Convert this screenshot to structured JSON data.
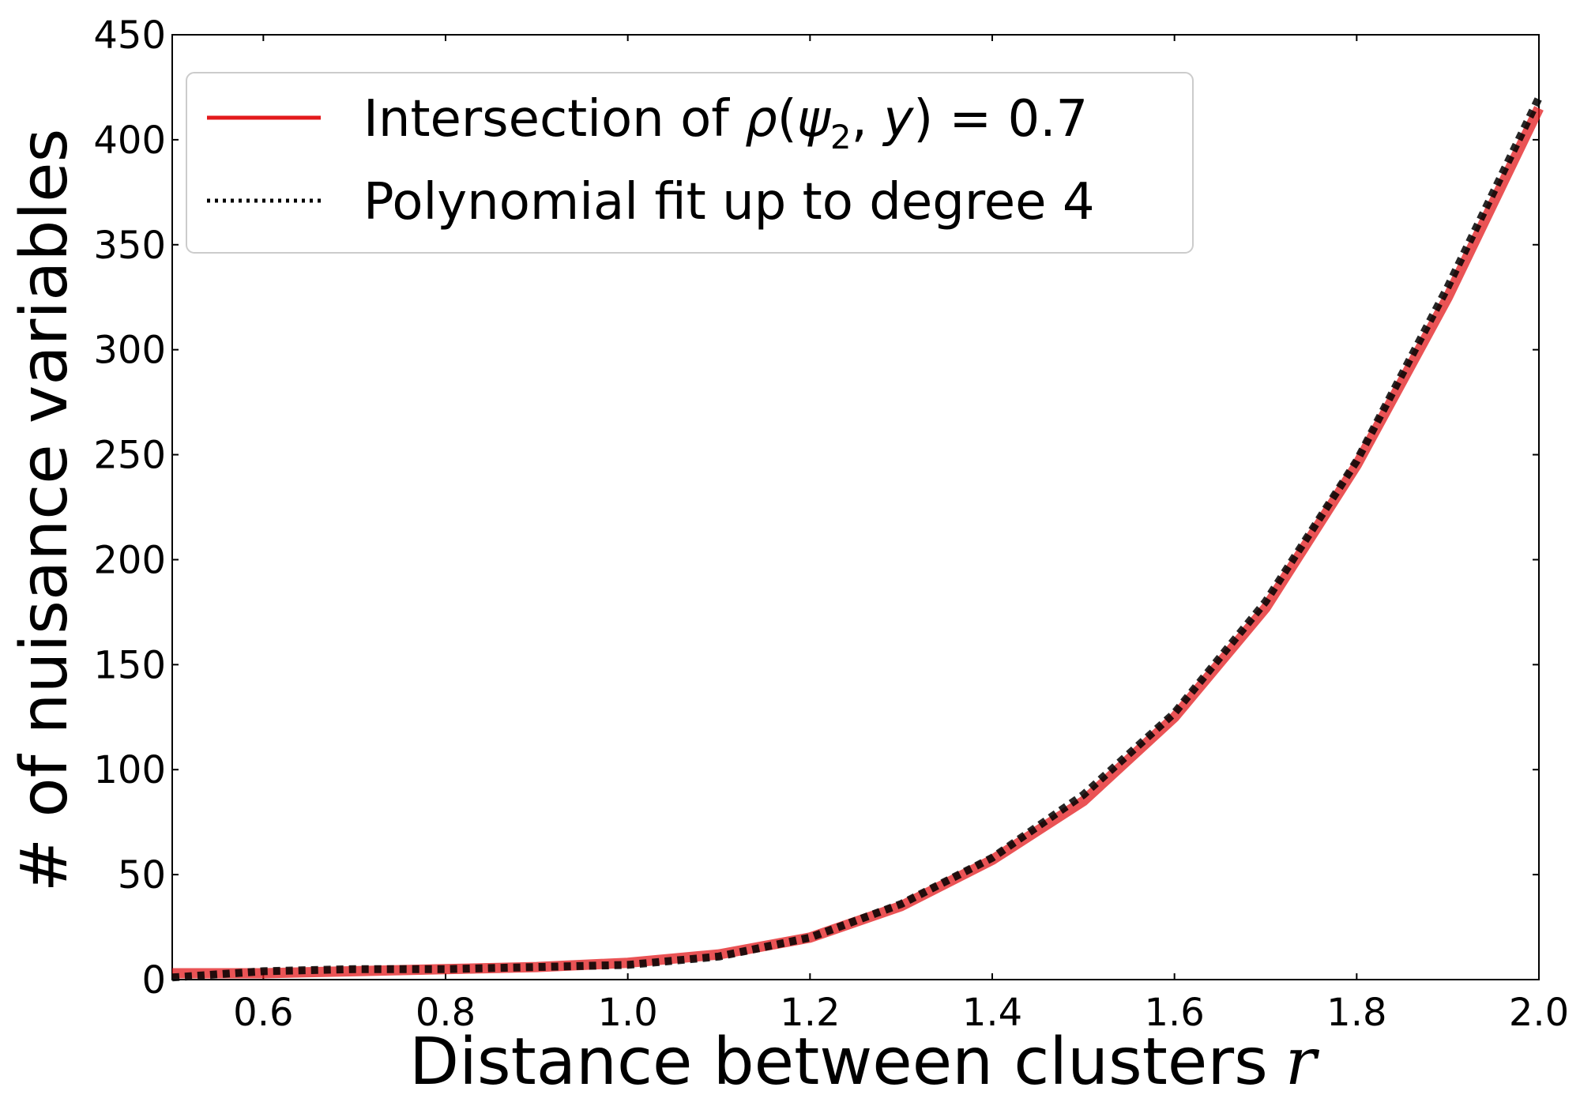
{
  "chart_data": {
    "type": "line",
    "xlabel": "Distance between clusters",
    "xlabel_symbol": "r",
    "ylabel": "# of nuisance variables",
    "xlim": [
      0.5,
      2.0
    ],
    "ylim": [
      0,
      450
    ],
    "x_ticks": [
      "0.6",
      "0.8",
      "1.0",
      "1.2",
      "1.4",
      "1.6",
      "1.8",
      "2.0"
    ],
    "y_ticks": [
      "0",
      "50",
      "100",
      "150",
      "200",
      "250",
      "300",
      "350",
      "400",
      "450"
    ],
    "x_tick_values": [
      0.6,
      0.8,
      1.0,
      1.2,
      1.4,
      1.6,
      1.8,
      2.0
    ],
    "y_tick_values": [
      0,
      50,
      100,
      150,
      200,
      250,
      300,
      350,
      400,
      450
    ],
    "grid": false,
    "legend_position": "top-left",
    "series": [
      {
        "name": "Intersection of ρ(ψ₂, y) = 0.7",
        "name_parts": {
          "prefix": "Intersection of ",
          "rho": "ρ",
          "open": "(",
          "psi": "ψ",
          "sub": "2",
          "mid": ", ",
          "y": "y",
          "close": ")",
          "eq": " = 0.7"
        },
        "style": "solid",
        "color": "#e31a1c",
        "x": [
          0.5,
          0.6,
          0.7,
          0.8,
          0.9,
          1.0,
          1.1,
          1.2,
          1.3,
          1.4,
          1.5,
          1.6,
          1.7,
          1.8,
          1.9,
          2.0
        ],
        "y": [
          3,
          3,
          4,
          5,
          6,
          8,
          12,
          20,
          35,
          57,
          85,
          125,
          177,
          245,
          325,
          415
        ]
      },
      {
        "name": "Polynomial fit up to degree 4",
        "style": "dotted",
        "color": "#000000",
        "x": [
          0.5,
          0.6,
          0.7,
          0.8,
          0.9,
          1.0,
          1.1,
          1.2,
          1.3,
          1.4,
          1.5,
          1.6,
          1.7,
          1.8,
          1.9,
          2.0
        ],
        "y": [
          1,
          4,
          5,
          5,
          6,
          7,
          11,
          20,
          36,
          58,
          88,
          127,
          180,
          247,
          330,
          420
        ]
      }
    ]
  }
}
